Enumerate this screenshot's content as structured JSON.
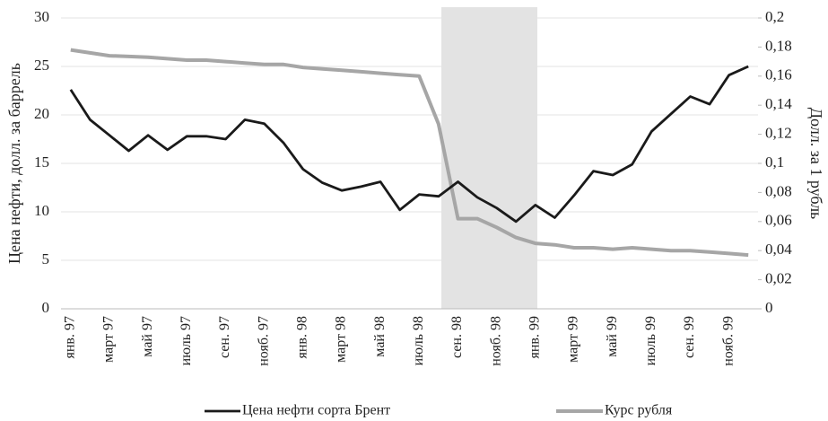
{
  "chart_data": {
    "type": "line",
    "y_label": "Цена нефти, долл. за баррель",
    "y2_label": "Долл. за 1 рубль",
    "categories": [
      "янв. 97",
      null,
      "март 97",
      null,
      "май 97",
      null,
      "июль 97",
      null,
      "сен. 97",
      null,
      "нояб. 97",
      null,
      "янв. 98",
      null,
      "март 98",
      null,
      "май 98",
      null,
      "июль 98",
      null,
      "сен. 98",
      null,
      "нояб. 98",
      null,
      "янв. 99",
      null,
      "март 99",
      null,
      "май 99",
      null,
      "июль 99",
      null,
      "сен. 99",
      null,
      "нояб. 99",
      null
    ],
    "series": [
      {
        "name": "Цена нефти сорта Брент",
        "color": "#1a1a1a",
        "axis": "y",
        "values": [
          22.6,
          19.5,
          17.9,
          16.3,
          17.9,
          16.4,
          17.8,
          17.8,
          17.5,
          19.5,
          19.1,
          17.1,
          14.4,
          13.0,
          12.2,
          12.6,
          13.1,
          10.2,
          11.8,
          11.6,
          13.1,
          11.5,
          10.4,
          9.0,
          10.7,
          9.4,
          11.7,
          14.2,
          13.8,
          14.9,
          18.3,
          20.1,
          21.9,
          21.1,
          24.1,
          25.0
        ]
      },
      {
        "name": "Курс рубля",
        "color": "#a6a6a6",
        "axis": "y2",
        "values": [
          0.178,
          0.176,
          0.174,
          0.1735,
          0.173,
          0.172,
          0.171,
          0.171,
          0.17,
          0.169,
          0.168,
          0.168,
          0.166,
          0.165,
          0.164,
          0.163,
          0.162,
          0.161,
          0.16,
          0.127,
          0.062,
          0.062,
          0.056,
          0.049,
          0.045,
          0.044,
          0.042,
          0.042,
          0.041,
          0.042,
          0.041,
          0.04,
          0.04,
          0.039,
          0.038,
          0.037
        ]
      }
    ],
    "ylim": [
      0,
      30
    ],
    "yticks": [
      0,
      5,
      10,
      15,
      20,
      25,
      30
    ],
    "y2lim": [
      0,
      0.2
    ],
    "y2ticks": [
      0,
      {
        "value": 0.02,
        "label": "0,02"
      },
      {
        "value": 0.04,
        "label": "0,04"
      },
      {
        "value": 0.06,
        "label": "0,06"
      },
      {
        "value": 0.08,
        "label": "0,08"
      },
      {
        "value": 0.1,
        "label": "0,1"
      },
      {
        "value": 0.12,
        "label": "0,12"
      },
      {
        "value": 0.14,
        "label": "0,14"
      },
      {
        "value": 0.16,
        "label": "0,16"
      },
      {
        "value": 0.18,
        "label": "0,18"
      },
      {
        "value": 0.2,
        "label": "0,2"
      }
    ],
    "grid": true,
    "legend": "bottom"
  }
}
